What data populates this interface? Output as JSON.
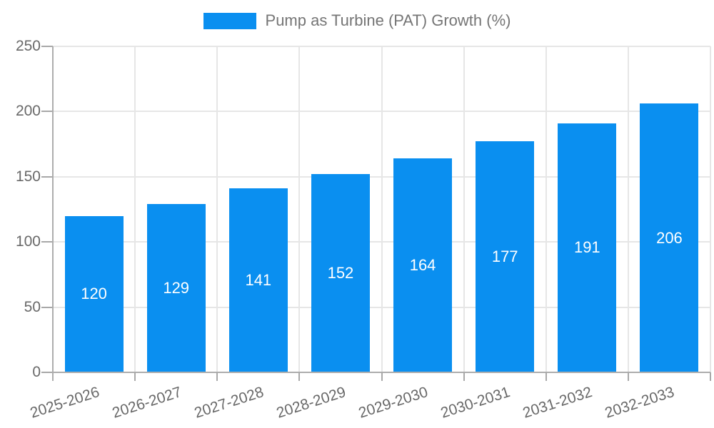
{
  "chart_data": {
    "type": "bar",
    "title": "Pump as Turbine (PAT) Growth (%)",
    "categories": [
      "2025-2026",
      "2026-2027",
      "2027-2028",
      "2028-2029",
      "2029-2030",
      "2030-2031",
      "2031-2032",
      "2032-2033"
    ],
    "series": [
      {
        "name": "Pump as Turbine (PAT) Growth (%)",
        "values": [
          120,
          129,
          141,
          152,
          164,
          177,
          191,
          206
        ]
      }
    ],
    "xlabel": "",
    "ylabel": "",
    "ylim": [
      0,
      250
    ],
    "yticks": [
      0,
      50,
      100,
      150,
      200,
      250
    ],
    "grid": true,
    "legend_position": "top",
    "x_label_rotation_deg": -18,
    "colors": {
      "bar": "#0a8ff0",
      "value_label": "#ffffff",
      "grid_line": "#e6e6e6",
      "axis_line": "#adadad",
      "tick": "#a8a8a8",
      "axis_text": "#696969",
      "legend_text": "#757575"
    }
  }
}
